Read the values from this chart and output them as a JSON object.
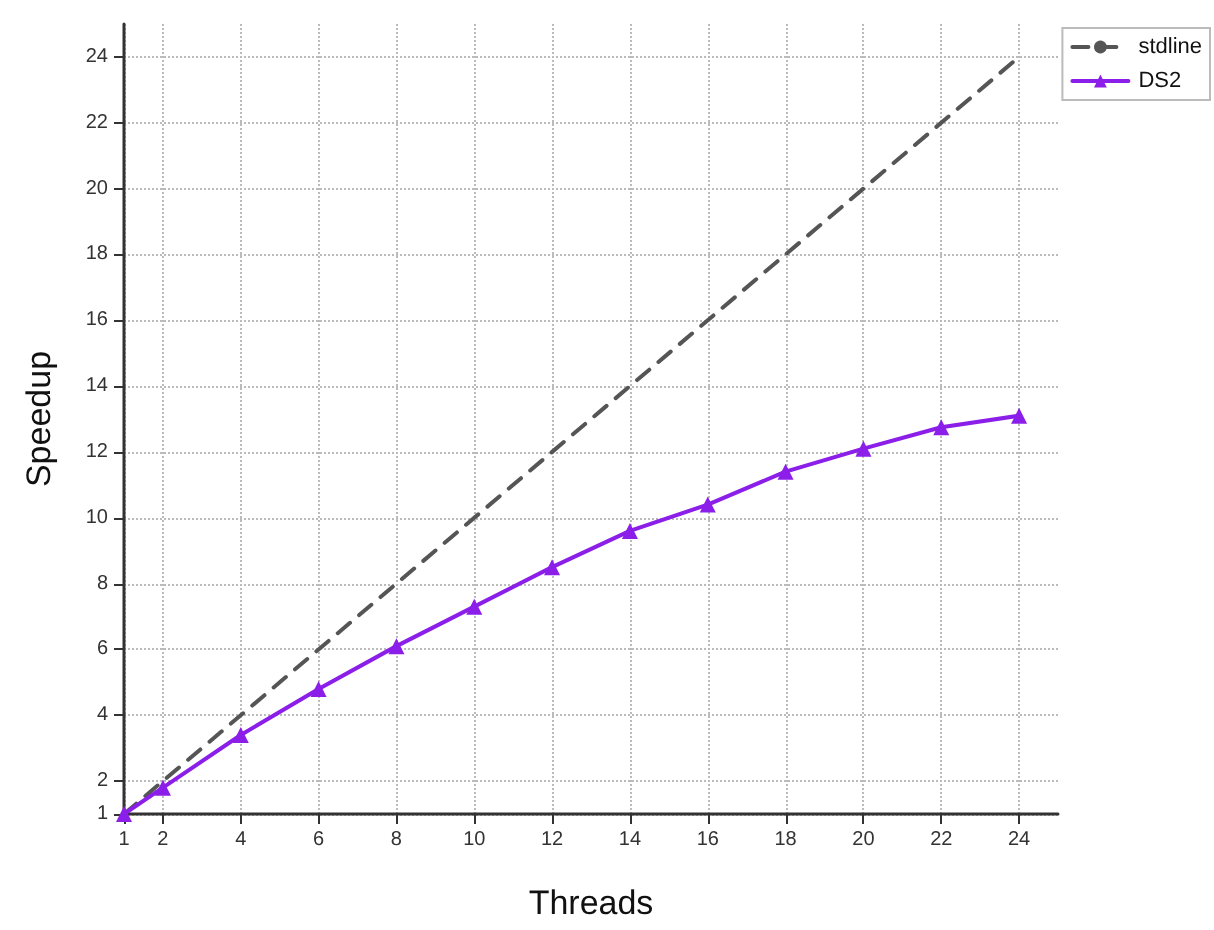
{
  "chart_data": {
    "type": "line",
    "xlabel": "Threads",
    "ylabel": "Speedup",
    "xlim": [
      1,
      25
    ],
    "xticks": [
      1,
      2,
      4,
      6,
      8,
      10,
      12,
      14,
      16,
      18,
      20,
      22,
      24
    ],
    "ylim": [
      1,
      25
    ],
    "yticks": [
      1,
      2,
      4,
      6,
      8,
      10,
      12,
      14,
      16,
      18,
      20,
      22,
      24
    ],
    "grid": true,
    "legend": "top right",
    "series": [
      {
        "name": "stdline",
        "color": "#555555",
        "line_style": "dashed",
        "marker": "none",
        "x": [
          1,
          24
        ],
        "values": [
          1,
          24
        ]
      },
      {
        "name": "DS2",
        "color": "#8b1ee8",
        "line_style": "solid",
        "marker": "triangle",
        "x": [
          1,
          2,
          4,
          6,
          8,
          10,
          12,
          14,
          16,
          18,
          20,
          22,
          24
        ],
        "values": [
          1,
          1.8,
          3.4,
          4.8,
          6.1,
          7.3,
          8.5,
          9.6,
          10.4,
          11.4,
          12.1,
          12.75,
          13.1
        ]
      }
    ]
  }
}
